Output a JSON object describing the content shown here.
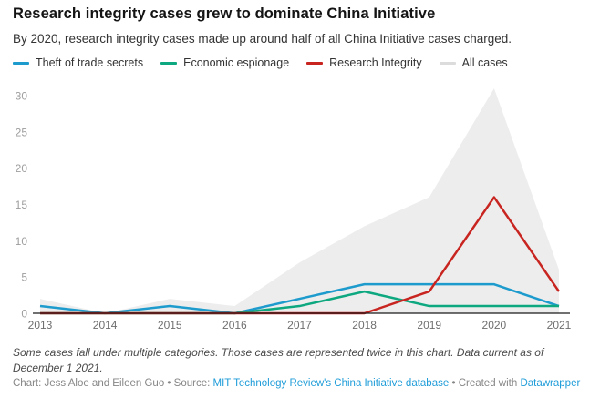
{
  "header": {
    "title": "Research integrity cases grew to dominate China Initiative",
    "subtitle": "By 2020, research integrity cases made up around half of all China Initiative cases charged."
  },
  "chart_data": {
    "type": "line",
    "title": "Research integrity cases grew to dominate China Initiative",
    "x": [
      2013,
      2014,
      2015,
      2016,
      2017,
      2018,
      2019,
      2020,
      2021
    ],
    "series": [
      {
        "name": "Theft of trade secrets",
        "type": "line",
        "color": "#1e9bcd",
        "values": [
          1,
          0,
          1,
          0,
          2,
          4,
          4,
          4,
          1
        ]
      },
      {
        "name": "Economic espionage",
        "type": "line",
        "color": "#0da87f",
        "values": [
          0,
          0,
          0,
          0,
          1,
          3,
          1,
          1,
          1
        ]
      },
      {
        "name": "Research Integrity",
        "type": "line",
        "color": "#c82521",
        "values": [
          0,
          0,
          0,
          0,
          0,
          0,
          3,
          16,
          3
        ]
      },
      {
        "name": "All cases",
        "type": "area",
        "color": "#dcdcdc",
        "fill": "#ededed",
        "values": [
          2,
          0,
          2,
          1,
          7,
          12,
          16,
          31,
          6
        ]
      }
    ],
    "xlabel": "",
    "ylabel": "",
    "ylim": [
      0,
      30
    ],
    "yticks": [
      0,
      5,
      10,
      15,
      20,
      25,
      30
    ],
    "grid": false,
    "legend_position": "top",
    "axis_line_color": "#1a1a1a"
  },
  "footer": {
    "note": "Some cases fall under multiple categories. Those cases are represented twice in this chart. Data current as of December 1 2021.",
    "credit_chart_label": "Chart: Jess Aloe and Eileen Guo",
    "separator": "•",
    "source_label": "Source:",
    "source_link_text": "MIT Technology Review's China Initiative database",
    "created_with_label": "Created with",
    "created_with_link_text": "Datawrapper",
    "link_color": "#1e9cd8"
  }
}
